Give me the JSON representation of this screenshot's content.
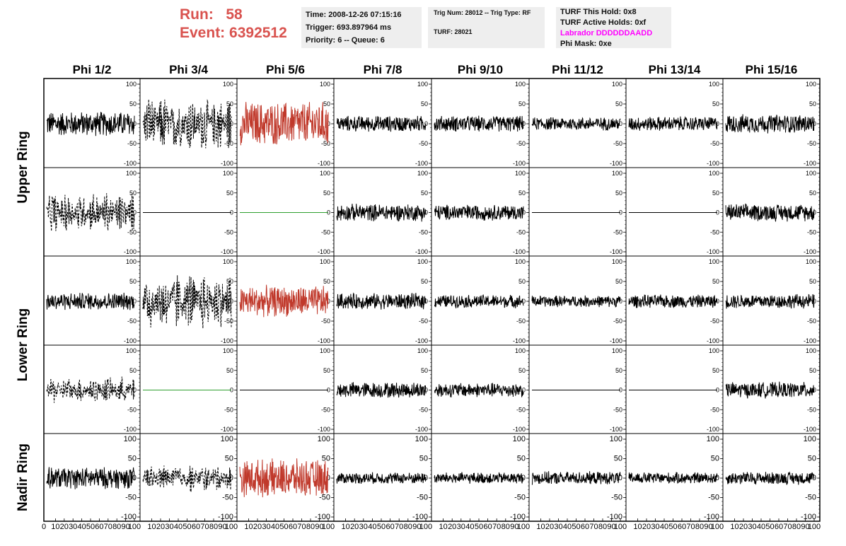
{
  "header": {
    "run_label": "Run:",
    "run_value": "58",
    "event_label": "Event:",
    "event_value": "6392512"
  },
  "time_box": {
    "time": "Time: 2008-12-26 07:15:16",
    "trigger": "Trigger: 693.897964 ms",
    "priority": "Priority: 6 -- Queue: 6"
  },
  "trig_box": {
    "trig": "Trig Num: 28012 -- Trig Type: RF",
    "turf": "TURF: 28021"
  },
  "turf_box": {
    "hold": "TURF This Hold: 0x8",
    "active": "TURF Active Holds: 0xf",
    "labrador": "Labrador DDDDDDAADD",
    "mask": "Phi Mask: 0xe"
  },
  "columns": [
    "Phi 1/2",
    "Phi 3/4",
    "Phi 5/6",
    "Phi 7/8",
    "Phi 9/10",
    "Phi 11/12",
    "Phi 13/14",
    "Phi 15/16"
  ],
  "rings": [
    "Upper Ring",
    "Lower Ring",
    "Nadir Ring"
  ],
  "y_ticks": [
    "100",
    "50",
    "0",
    "-50",
    "-100"
  ],
  "x_ticks": [
    "10",
    "20",
    "30",
    "40",
    "50",
    "60",
    "70",
    "80",
    "90",
    "100"
  ],
  "x_first_tick": "0",
  "colors": {
    "text_red": "#d9534f",
    "magenta": "#ff00ff",
    "trace_black": "#000000",
    "trace_red": "#c0392b",
    "trace_green": "#2e9e2e",
    "box_bg": "#eeeeee"
  },
  "panels": [
    {
      "row": 0,
      "col": 0,
      "style": "solid",
      "color": "black",
      "amp": 34
    },
    {
      "row": 0,
      "col": 1,
      "style": "dashed",
      "color": "black",
      "amp": 80
    },
    {
      "row": 0,
      "col": 2,
      "style": "solid",
      "color": "red",
      "amp": 60
    },
    {
      "row": 0,
      "col": 3,
      "style": "solid",
      "color": "black",
      "amp": 22
    },
    {
      "row": 0,
      "col": 4,
      "style": "solid",
      "color": "black",
      "amp": 22
    },
    {
      "row": 0,
      "col": 5,
      "style": "solid",
      "color": "black",
      "amp": 18
    },
    {
      "row": 0,
      "col": 6,
      "style": "solid",
      "color": "black",
      "amp": 20
    },
    {
      "row": 0,
      "col": 7,
      "style": "solid",
      "color": "black",
      "amp": 26
    },
    {
      "row": 1,
      "col": 0,
      "style": "dashed",
      "color": "black",
      "amp": 60
    },
    {
      "row": 1,
      "col": 1,
      "style": "flat",
      "color": "black",
      "amp": 0
    },
    {
      "row": 1,
      "col": 2,
      "style": "flat",
      "color": "green",
      "amp": 0
    },
    {
      "row": 1,
      "col": 3,
      "style": "solid",
      "color": "black",
      "amp": 24
    },
    {
      "row": 1,
      "col": 4,
      "style": "solid",
      "color": "black",
      "amp": 22
    },
    {
      "row": 1,
      "col": 5,
      "style": "flat",
      "color": "black",
      "amp": 0
    },
    {
      "row": 1,
      "col": 6,
      "style": "flat",
      "color": "black",
      "amp": 0
    },
    {
      "row": 1,
      "col": 7,
      "style": "solid",
      "color": "black",
      "amp": 24
    },
    {
      "row": 2,
      "col": 0,
      "style": "solid",
      "color": "black",
      "amp": 24
    },
    {
      "row": 2,
      "col": 1,
      "style": "dashed",
      "color": "black",
      "amp": 85
    },
    {
      "row": 2,
      "col": 2,
      "style": "solid",
      "color": "red",
      "amp": 42
    },
    {
      "row": 2,
      "col": 3,
      "style": "solid",
      "color": "black",
      "amp": 22
    },
    {
      "row": 2,
      "col": 4,
      "style": "solid",
      "color": "black",
      "amp": 18
    },
    {
      "row": 2,
      "col": 5,
      "style": "solid",
      "color": "black",
      "amp": 16
    },
    {
      "row": 2,
      "col": 6,
      "style": "solid",
      "color": "black",
      "amp": 18
    },
    {
      "row": 2,
      "col": 7,
      "style": "solid",
      "color": "black",
      "amp": 20
    },
    {
      "row": 3,
      "col": 0,
      "style": "dashed",
      "color": "black",
      "amp": 38
    },
    {
      "row": 3,
      "col": 1,
      "style": "flat",
      "color": "green",
      "amp": 0
    },
    {
      "row": 3,
      "col": 2,
      "style": "flat",
      "color": "black",
      "amp": 0
    },
    {
      "row": 3,
      "col": 3,
      "style": "solid",
      "color": "black",
      "amp": 22
    },
    {
      "row": 3,
      "col": 4,
      "style": "solid",
      "color": "black",
      "amp": 20
    },
    {
      "row": 3,
      "col": 5,
      "style": "flat",
      "color": "black",
      "amp": 0
    },
    {
      "row": 3,
      "col": 6,
      "style": "flat",
      "color": "black",
      "amp": 0
    },
    {
      "row": 3,
      "col": 7,
      "style": "solid",
      "color": "black",
      "amp": 22
    },
    {
      "row": 4,
      "col": 0,
      "style": "solid",
      "color": "black",
      "amp": 30
    },
    {
      "row": 4,
      "col": 1,
      "style": "dashed",
      "color": "black",
      "amp": 40
    },
    {
      "row": 4,
      "col": 2,
      "style": "solid",
      "color": "red",
      "amp": 52
    },
    {
      "row": 4,
      "col": 3,
      "style": "solid",
      "color": "black",
      "amp": 16
    },
    {
      "row": 4,
      "col": 4,
      "style": "solid",
      "color": "black",
      "amp": 16
    },
    {
      "row": 4,
      "col": 5,
      "style": "solid",
      "color": "black",
      "amp": 18
    },
    {
      "row": 4,
      "col": 6,
      "style": "solid",
      "color": "black",
      "amp": 16
    },
    {
      "row": 4,
      "col": 7,
      "style": "solid",
      "color": "black",
      "amp": 18
    }
  ]
}
